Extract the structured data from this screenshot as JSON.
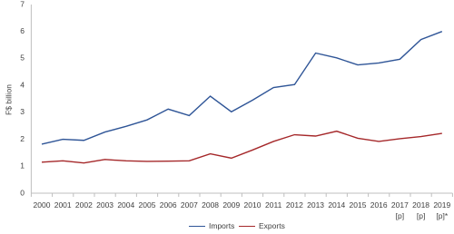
{
  "chart_data": {
    "type": "line",
    "y_label": "F$ billion",
    "categories": [
      "2000",
      "2001",
      "2002",
      "2003",
      "2004",
      "2005",
      "2006",
      "2007",
      "2008",
      "2009",
      "2010",
      "2011",
      "2012",
      "2013",
      "2014",
      "2015",
      "2016",
      "2017\n[p]",
      "2018\n[p]",
      "2019\n[p]*"
    ],
    "series": [
      {
        "name": "Imports",
        "color": "#2f5597",
        "values": [
          1.82,
          2.0,
          1.96,
          2.27,
          2.48,
          2.72,
          3.12,
          2.88,
          3.6,
          3.02,
          3.45,
          3.92,
          4.03,
          5.2,
          5.02,
          4.76,
          4.83,
          4.97,
          5.7,
          6.0
        ]
      },
      {
        "name": "Exports",
        "color": "#a5282a",
        "values": [
          1.15,
          1.2,
          1.12,
          1.25,
          1.2,
          1.18,
          1.19,
          1.2,
          1.46,
          1.3,
          1.6,
          1.92,
          2.17,
          2.12,
          2.3,
          2.04,
          1.92,
          2.02,
          2.1,
          2.22
        ]
      }
    ],
    "ylim": [
      0,
      7
    ],
    "yticks": [
      0,
      1,
      2,
      3,
      4,
      5,
      6,
      7
    ],
    "grid": false,
    "legend": "bottom"
  }
}
